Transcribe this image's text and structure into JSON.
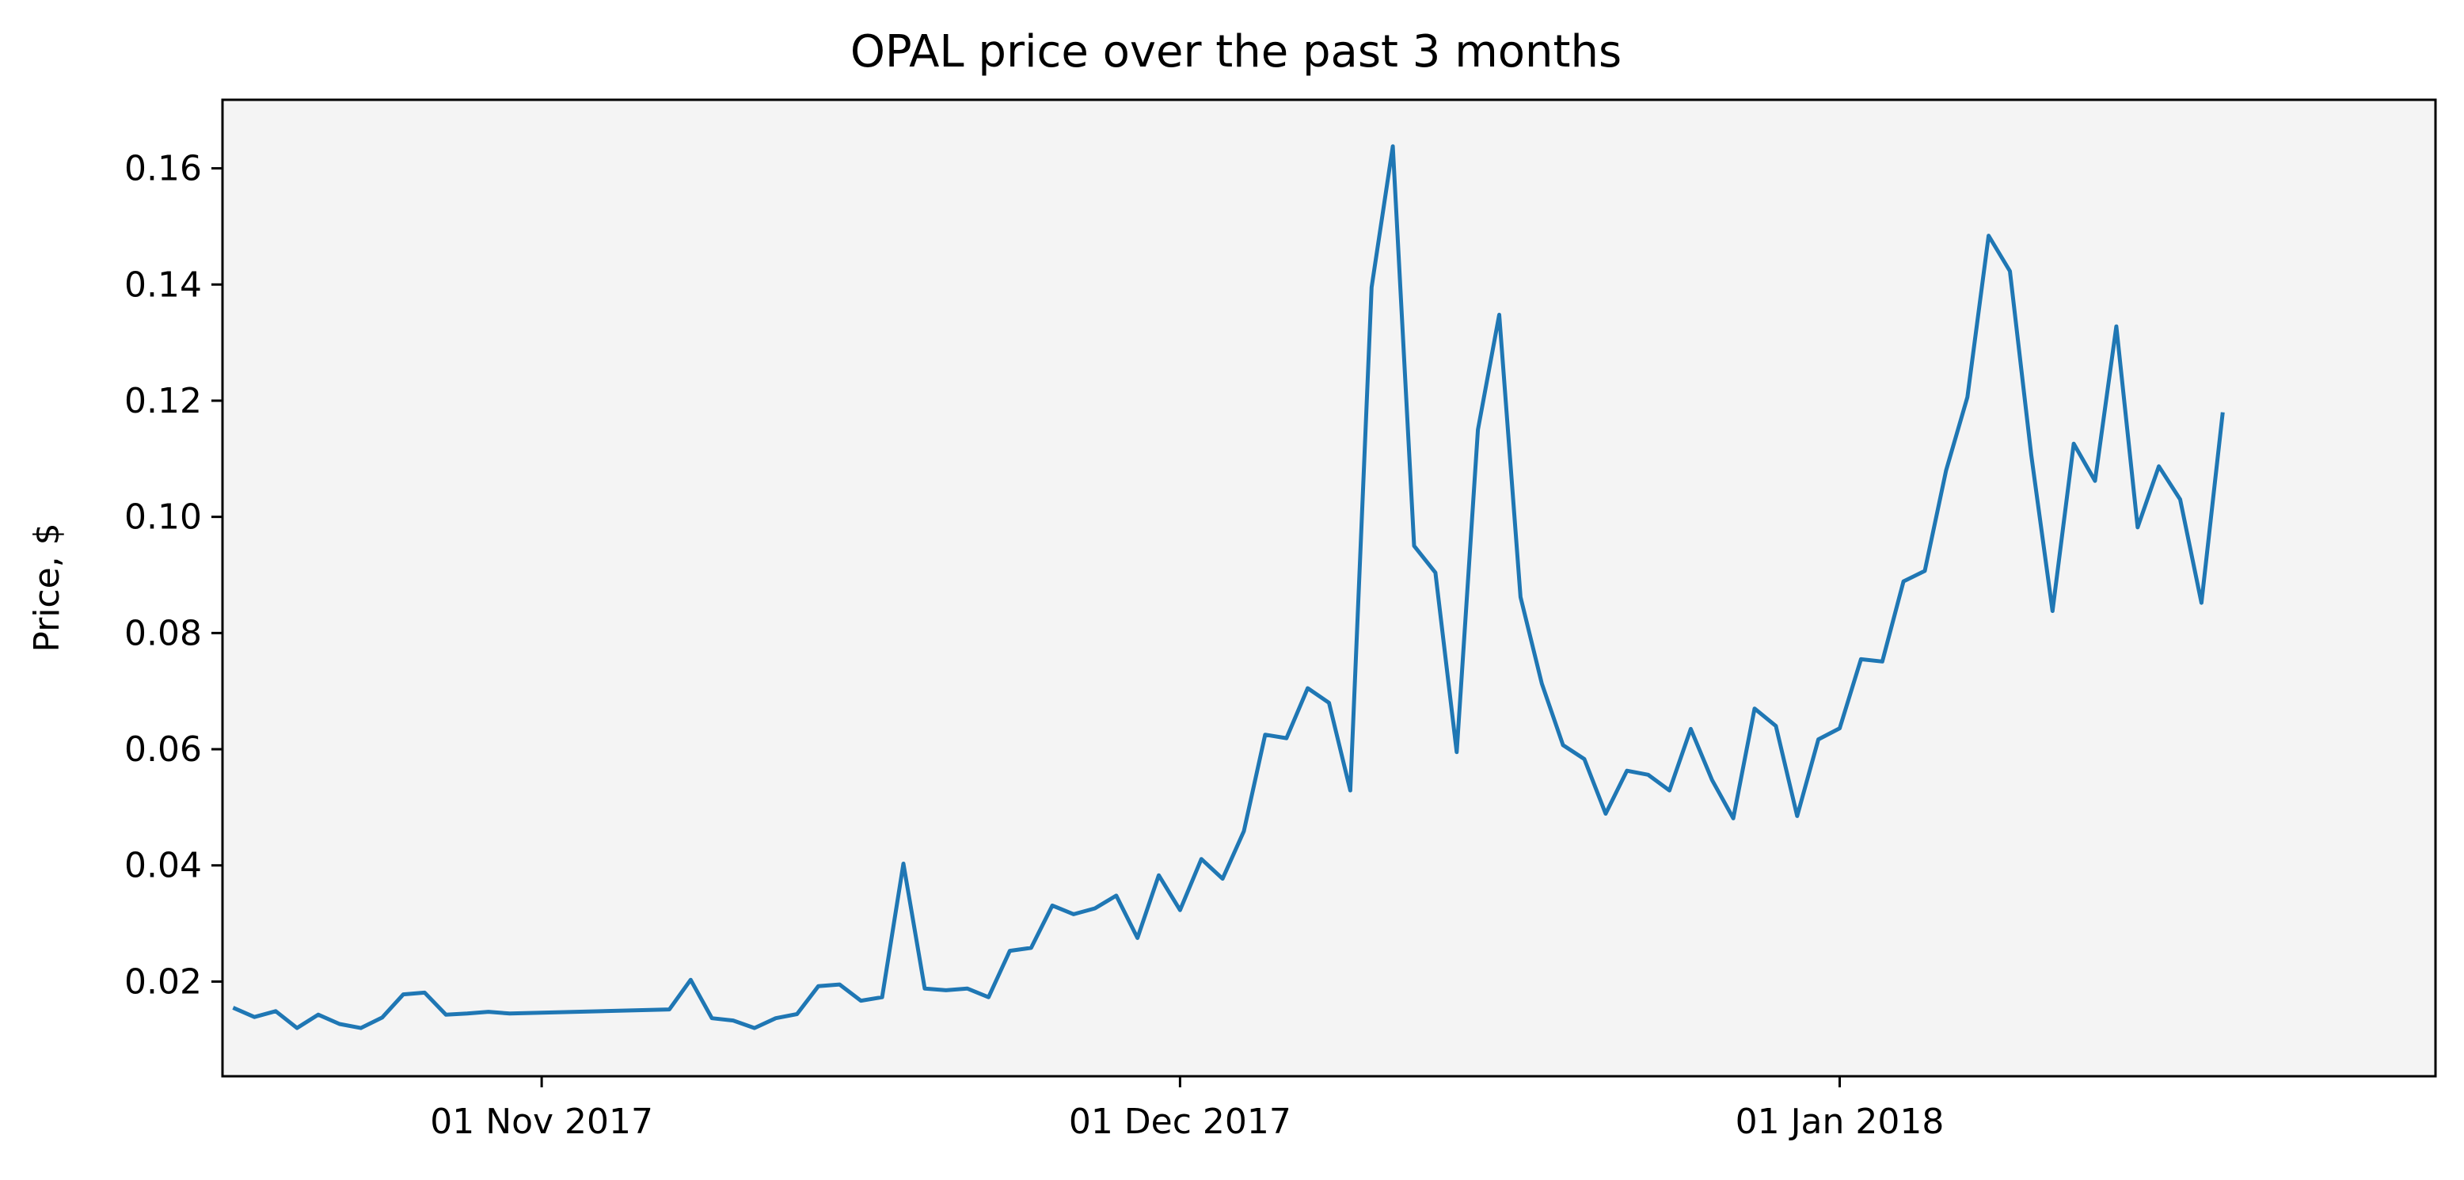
{
  "chart_data": {
    "type": "line",
    "title": "OPAL price over the past 3 months",
    "xlabel": "",
    "ylabel": "Price, $",
    "ylim": [
      0.0037,
      0.1718
    ],
    "xlim": [
      "2017-10-17",
      "2018-01-29"
    ],
    "grid": false,
    "background": "#f4f4f4",
    "line_color": "#1f77b4",
    "yticks": [
      {
        "value": 0.02,
        "label": "0.02"
      },
      {
        "value": 0.04,
        "label": "0.04"
      },
      {
        "value": 0.06,
        "label": "0.06"
      },
      {
        "value": 0.08,
        "label": "0.08"
      },
      {
        "value": 0.1,
        "label": "0.10"
      },
      {
        "value": 0.12,
        "label": "0.12"
      },
      {
        "value": 0.14,
        "label": "0.14"
      },
      {
        "value": 0.16,
        "label": "0.16"
      }
    ],
    "xticks": [
      {
        "date": "2017-11-01",
        "label": "01 Nov 2017"
      },
      {
        "date": "2017-12-01",
        "label": "01 Dec 2017"
      },
      {
        "date": "2018-01-01",
        "label": "01 Jan 2018"
      }
    ],
    "series": [
      {
        "points": [
          [
            "2017-10-17T12:00",
            0.0155
          ],
          [
            "2017-10-18T12:00",
            0.0139
          ],
          [
            "2017-10-19T12:00",
            0.0149
          ],
          [
            "2017-10-20T12:00",
            0.012
          ],
          [
            "2017-10-21T12:00",
            0.0143
          ],
          [
            "2017-10-22T12:00",
            0.0127
          ],
          [
            "2017-10-23T12:00",
            0.012
          ],
          [
            "2017-10-24T12:00",
            0.0138
          ],
          [
            "2017-10-25T12:00",
            0.0178
          ],
          [
            "2017-10-26T12:00",
            0.0181
          ],
          [
            "2017-10-27T12:00",
            0.0143
          ],
          [
            "2017-10-28T12:00",
            0.0145
          ],
          [
            "2017-10-29T12:00",
            0.0148
          ],
          [
            "2017-10-30T12:00",
            0.0145
          ],
          [
            "2017-11-07T00:00",
            0.0152
          ],
          [
            "2017-11-08T00:00",
            0.0203
          ],
          [
            "2017-11-09T00:00",
            0.0137
          ],
          [
            "2017-11-10T00:00",
            0.0133
          ],
          [
            "2017-11-11T00:00",
            0.012
          ],
          [
            "2017-11-12T00:00",
            0.0137
          ],
          [
            "2017-11-13T00:00",
            0.0144
          ],
          [
            "2017-11-14T00:00",
            0.0192
          ],
          [
            "2017-11-15T00:00",
            0.0195
          ],
          [
            "2017-11-16T00:00",
            0.0167
          ],
          [
            "2017-11-17T00:00",
            0.0173
          ],
          [
            "2017-11-18T00:00",
            0.0403
          ],
          [
            "2017-11-19T00:00",
            0.0188
          ],
          [
            "2017-11-20T00:00",
            0.0185
          ],
          [
            "2017-11-21T00:00",
            0.0188
          ],
          [
            "2017-11-22T00:00",
            0.0173
          ],
          [
            "2017-11-23T00:00",
            0.0253
          ],
          [
            "2017-11-24T00:00",
            0.0258
          ],
          [
            "2017-11-25T00:00",
            0.0331
          ],
          [
            "2017-11-26T00:00",
            0.0316
          ],
          [
            "2017-11-27T00:00",
            0.0326
          ],
          [
            "2017-11-28T00:00",
            0.0348
          ],
          [
            "2017-11-29T00:00",
            0.0275
          ],
          [
            "2017-11-30T00:00",
            0.0383
          ],
          [
            "2017-12-01T00:00",
            0.0323
          ],
          [
            "2017-12-02T00:00",
            0.0411
          ],
          [
            "2017-12-03T00:00",
            0.0377
          ],
          [
            "2017-12-04T00:00",
            0.0459
          ],
          [
            "2017-12-05T00:00",
            0.0625
          ],
          [
            "2017-12-06T00:00",
            0.0619
          ],
          [
            "2017-12-07T00:00",
            0.0705
          ],
          [
            "2017-12-08T00:00",
            0.068
          ],
          [
            "2017-12-09T00:00",
            0.0529
          ],
          [
            "2017-12-10T00:00",
            0.1395
          ],
          [
            "2017-12-11T00:00",
            0.1638
          ],
          [
            "2017-12-12T00:00",
            0.095
          ],
          [
            "2017-12-13T00:00",
            0.0904
          ],
          [
            "2017-12-14T00:00",
            0.0595
          ],
          [
            "2017-12-15T00:00",
            0.115
          ],
          [
            "2017-12-16T00:00",
            0.1348
          ],
          [
            "2017-12-17T00:00",
            0.0862
          ],
          [
            "2017-12-18T00:00",
            0.0713
          ],
          [
            "2017-12-19T00:00",
            0.0607
          ],
          [
            "2017-12-20T00:00",
            0.0583
          ],
          [
            "2017-12-21T00:00",
            0.0489
          ],
          [
            "2017-12-22T00:00",
            0.0563
          ],
          [
            "2017-12-23T00:00",
            0.0556
          ],
          [
            "2017-12-24T00:00",
            0.0529
          ],
          [
            "2017-12-25T00:00",
            0.0635
          ],
          [
            "2017-12-26T00:00",
            0.0547
          ],
          [
            "2017-12-27T00:00",
            0.0481
          ],
          [
            "2017-12-28T00:00",
            0.067
          ],
          [
            "2017-12-29T00:00",
            0.064
          ],
          [
            "2017-12-30T00:00",
            0.0485
          ],
          [
            "2017-12-31T00:00",
            0.0617
          ],
          [
            "2018-01-01T00:00",
            0.0636
          ],
          [
            "2018-01-02T00:00",
            0.0755
          ],
          [
            "2018-01-03T00:00",
            0.0751
          ],
          [
            "2018-01-04T00:00",
            0.0889
          ],
          [
            "2018-01-05T00:00",
            0.0907
          ],
          [
            "2018-01-06T00:00",
            0.108
          ],
          [
            "2018-01-07T00:00",
            0.1206
          ],
          [
            "2018-01-08T00:00",
            0.1484
          ],
          [
            "2018-01-09T00:00",
            0.1423
          ],
          [
            "2018-01-10T00:00",
            0.1107
          ],
          [
            "2018-01-11T00:00",
            0.0838
          ],
          [
            "2018-01-12T00:00",
            0.1126
          ],
          [
            "2018-01-13T00:00",
            0.1062
          ],
          [
            "2018-01-14T00:00",
            0.1328
          ],
          [
            "2018-01-15T00:00",
            0.0982
          ],
          [
            "2018-01-16T00:00",
            0.1087
          ],
          [
            "2018-01-17T00:00",
            0.103
          ],
          [
            "2018-01-18T00:00",
            0.0852
          ],
          [
            "2018-01-19T00:00",
            0.118
          ]
        ]
      }
    ]
  }
}
